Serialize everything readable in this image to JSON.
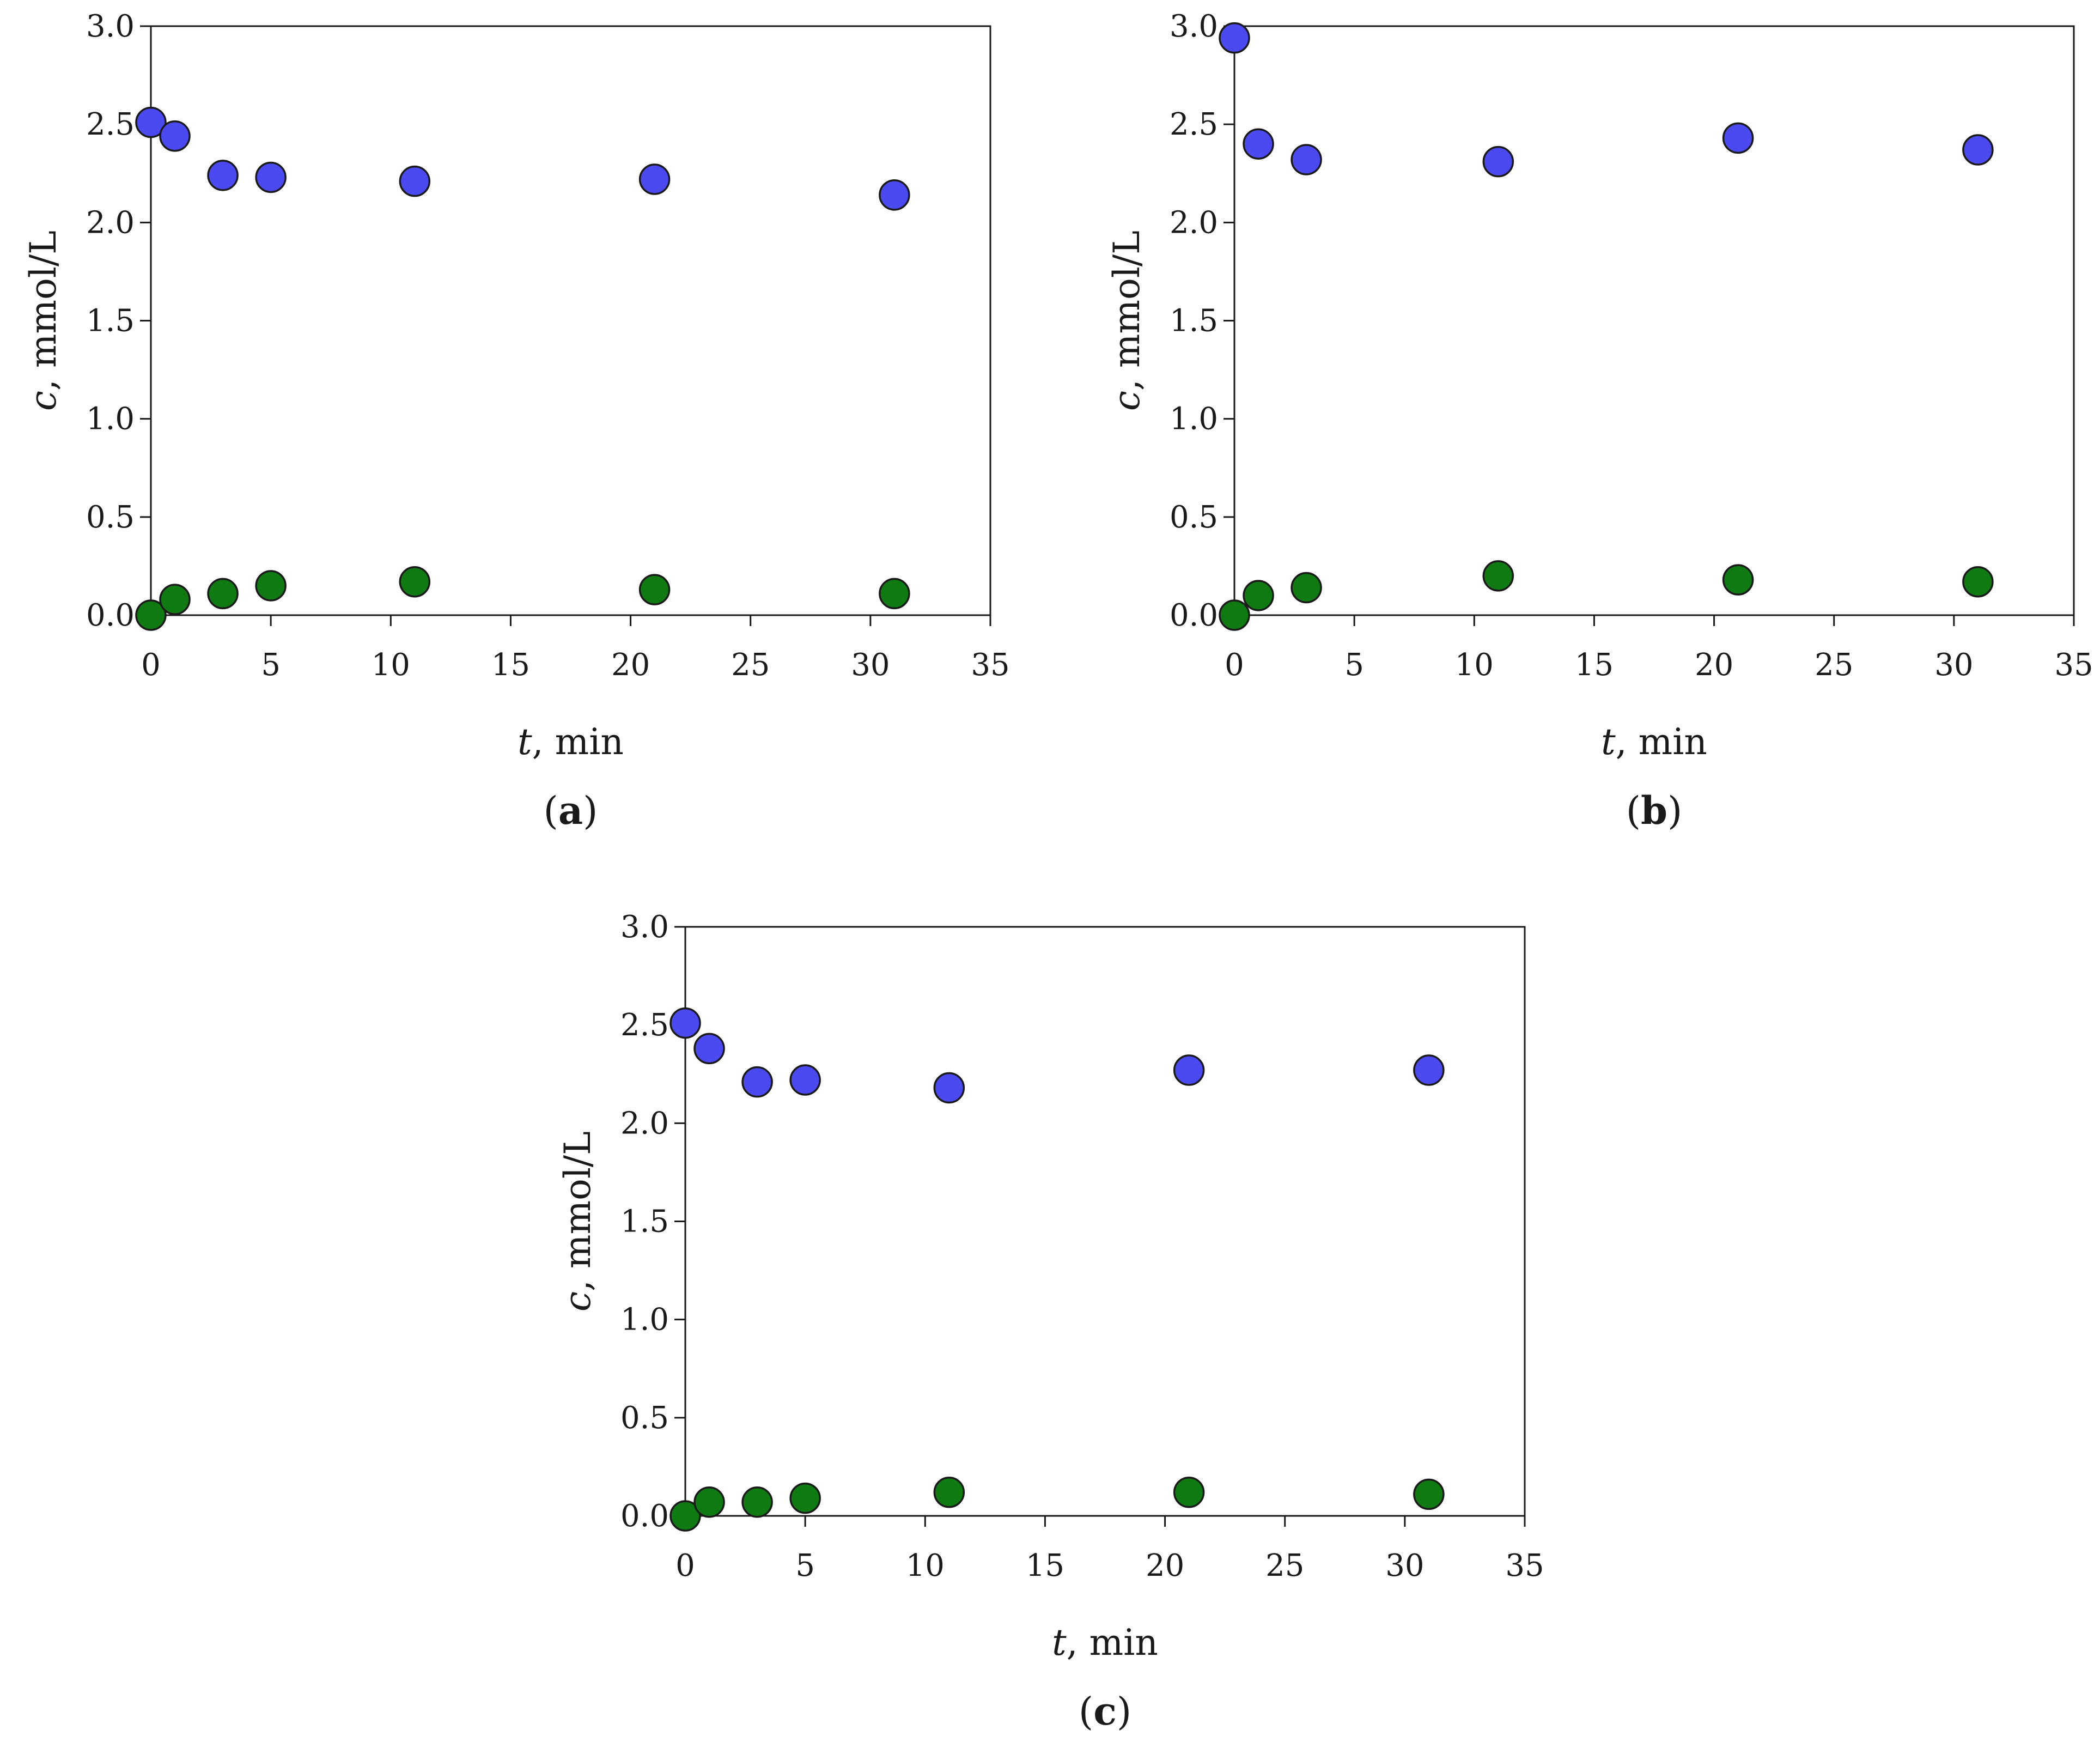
{
  "colors": {
    "series_blue": "#4a4af0",
    "series_green": "#0f7a12",
    "axis": "#1a1a1a"
  },
  "chart_data": [
    {
      "type": "scatter",
      "panel_label": "a",
      "xlabel_var": "t",
      "xlabel_unit": ", min",
      "ylabel_var": "c",
      "ylabel_unit": ", mmol/L",
      "xlim": [
        0,
        35
      ],
      "ylim": [
        0,
        3.0
      ],
      "xticks": [
        "0",
        "5",
        "10",
        "15",
        "20",
        "25",
        "30",
        "35"
      ],
      "yticks": [
        "0.0",
        "0.5",
        "1.0",
        "1.5",
        "2.0",
        "2.5",
        "3.0"
      ],
      "grid": false,
      "legend": "none",
      "series": [
        {
          "color": "#4a4af0",
          "x": [
            0,
            1,
            3,
            5,
            11,
            21,
            31
          ],
          "y": [
            2.51,
            2.44,
            2.24,
            2.23,
            2.21,
            2.22,
            2.14
          ]
        },
        {
          "color": "#0f7a12",
          "x": [
            0,
            1,
            3,
            5,
            11,
            21,
            31
          ],
          "y": [
            0.0,
            0.08,
            0.11,
            0.15,
            0.17,
            0.13,
            0.11
          ]
        }
      ]
    },
    {
      "type": "scatter",
      "panel_label": "b",
      "xlabel_var": "t",
      "xlabel_unit": ", min",
      "ylabel_var": "c",
      "ylabel_unit": ", mmol/L",
      "xlim": [
        0,
        35
      ],
      "ylim": [
        0,
        3.0
      ],
      "xticks": [
        "0",
        "5",
        "10",
        "15",
        "20",
        "25",
        "30",
        "35"
      ],
      "yticks": [
        "0.0",
        "0.5",
        "1.0",
        "1.5",
        "2.0",
        "2.5",
        "3.0"
      ],
      "grid": false,
      "legend": "none",
      "series": [
        {
          "color": "#4a4af0",
          "x": [
            0,
            1,
            3,
            11,
            21,
            31
          ],
          "y": [
            2.94,
            2.4,
            2.32,
            2.31,
            2.43,
            2.37
          ]
        },
        {
          "color": "#0f7a12",
          "x": [
            0,
            1,
            3,
            11,
            21,
            31
          ],
          "y": [
            0.0,
            0.1,
            0.14,
            0.2,
            0.18,
            0.17
          ]
        }
      ]
    },
    {
      "type": "scatter",
      "panel_label": "c",
      "xlabel_var": "t",
      "xlabel_unit": ", min",
      "ylabel_var": "c",
      "ylabel_unit": ", mmol/L",
      "xlim": [
        0,
        35
      ],
      "ylim": [
        0,
        3.0
      ],
      "xticks": [
        "0",
        "5",
        "10",
        "15",
        "20",
        "25",
        "30",
        "35"
      ],
      "yticks": [
        "0.0",
        "0.5",
        "1.0",
        "1.5",
        "2.0",
        "2.5",
        "3.0"
      ],
      "grid": false,
      "legend": "none",
      "series": [
        {
          "color": "#4a4af0",
          "x": [
            0,
            1,
            3,
            5,
            11,
            21,
            31
          ],
          "y": [
            2.51,
            2.38,
            2.21,
            2.22,
            2.18,
            2.27,
            2.27
          ]
        },
        {
          "color": "#0f7a12",
          "x": [
            0,
            1,
            3,
            5,
            11,
            21,
            31
          ],
          "y": [
            0.0,
            0.07,
            0.07,
            0.09,
            0.12,
            0.12,
            0.11
          ]
        }
      ]
    }
  ]
}
